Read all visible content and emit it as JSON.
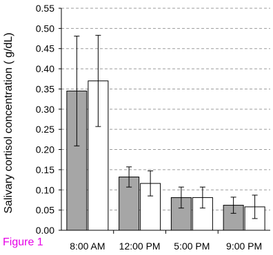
{
  "figure_label": "Figure 1",
  "colors": {
    "series_gray": "#a6a6a6",
    "series_white": "#ffffff",
    "outline": "#000000",
    "grid": "#9a9a9a",
    "figure_label": "#e600e6"
  },
  "chart_data": {
    "type": "bar",
    "title": "",
    "xlabel": "",
    "ylabel": "Salivary cortisol concentration (   g/dL)",
    "ylim": [
      0,
      0.55
    ],
    "yticks": [
      "0.00",
      "0.05",
      "0.10",
      "0.15",
      "0.20",
      "0.25",
      "0.30",
      "0.35",
      "0.40",
      "0.45",
      "0.50",
      "0.55"
    ],
    "grid": "horizontal dashed",
    "categories": [
      "8:00 AM",
      "12:00 PM",
      "5:00 PM",
      "9:00 PM"
    ],
    "series": [
      {
        "color": "#a6a6a6",
        "values": [
          0.345,
          0.132,
          0.081,
          0.062
        ],
        "error": [
          0.136,
          0.025,
          0.026,
          0.02
        ]
      },
      {
        "color": "#ffffff",
        "values": [
          0.37,
          0.116,
          0.081,
          0.058
        ],
        "error": [
          0.113,
          0.031,
          0.026,
          0.029
        ]
      }
    ]
  }
}
